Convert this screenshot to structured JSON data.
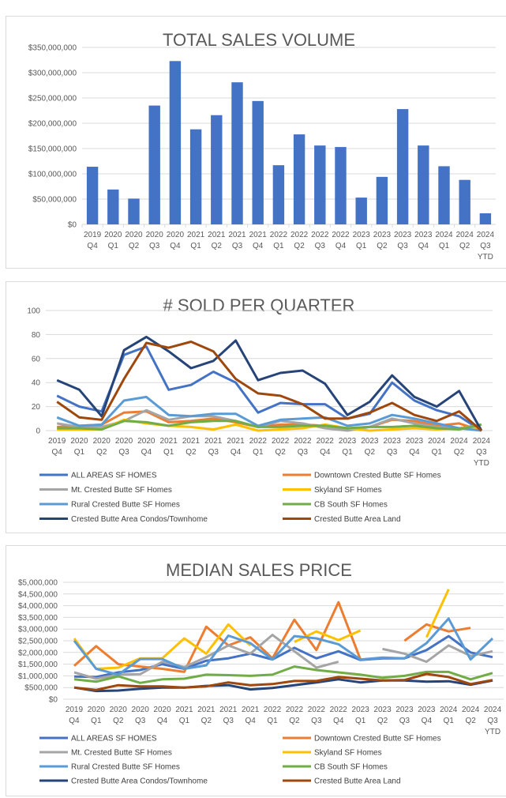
{
  "chart_data": [
    {
      "type": "bar",
      "title": "TOTAL SALES VOLUME",
      "xlabel": "",
      "ylabel": "",
      "categories": [
        "2019 Q4",
        "2020 Q1",
        "2020 Q2",
        "2020 Q3",
        "2020 Q4",
        "2021 Q1",
        "2021 Q2",
        "2021 Q3",
        "2021 Q4",
        "2022 Q1",
        "2022 Q2",
        "2022 Q3",
        "2022 Q4",
        "2023 Q1",
        "2023 Q2",
        "2023 Q3",
        "2023 Q4",
        "2024 Q1",
        "2024 Q2",
        "2024 Q3 YTD"
      ],
      "values": [
        114000000,
        69000000,
        51000000,
        235000000,
        323000000,
        188000000,
        216000000,
        281000000,
        244000000,
        117000000,
        178000000,
        156000000,
        153000000,
        53000000,
        94000000,
        228000000,
        156000000,
        115000000,
        88000000,
        22000000
      ],
      "ylim": [
        0,
        350000000
      ],
      "yticks": [
        "$0",
        "$50,000,000",
        "$100,000,000",
        "$150,000,000",
        "$200,000,000",
        "$250,000,000",
        "$300,000,000",
        "$350,000,000"
      ],
      "grid": true,
      "color": "#4472c4"
    },
    {
      "type": "line",
      "title": "# SOLD PER QUARTER",
      "xlabel": "",
      "ylabel": "",
      "categories": [
        "2019 Q4",
        "2020 Q1",
        "2020 Q2",
        "2020 Q3",
        "2020 Q4",
        "2021 Q1",
        "2021 Q2",
        "2021 Q3",
        "2021 Q4",
        "2022 Q1",
        "2022 Q2",
        "2022 Q3",
        "2022 Q4",
        "2023 Q1",
        "2023 Q2",
        "2023 Q3",
        "2023 Q4",
        "2024 Q1",
        "2024 Q2",
        "2024 Q3 YTD"
      ],
      "ylim": [
        0,
        100
      ],
      "yticks": [
        "0",
        "20",
        "40",
        "60",
        "80",
        "100"
      ],
      "grid": true,
      "legend": "bottom",
      "series": [
        {
          "name": "ALL AREAS SF HOMES",
          "color": "#4472c4",
          "values": [
            29,
            20,
            16,
            63,
            70,
            34,
            38,
            49,
            40,
            15,
            23,
            22,
            22,
            10,
            14,
            40,
            25,
            17,
            12,
            0
          ]
        },
        {
          "name": "Downtown Crested Butte SF Homes",
          "color": "#ed7d31",
          "values": [
            3,
            4,
            5,
            15,
            16,
            7,
            8,
            10,
            7,
            3,
            5,
            5,
            4,
            2,
            3,
            9,
            8,
            4,
            6,
            0
          ]
        },
        {
          "name": "Mt. Crested Butte SF Homes",
          "color": "#a5a5a5",
          "values": [
            6,
            3,
            3,
            8,
            17,
            9,
            12,
            12,
            8,
            3,
            8,
            6,
            2,
            0,
            3,
            10,
            6,
            3,
            2,
            5
          ]
        },
        {
          "name": "Skyland SF Homes",
          "color": "#ffc000",
          "values": [
            1,
            1,
            1,
            9,
            6,
            4,
            3,
            1,
            5,
            0,
            1,
            2,
            5,
            2,
            0,
            1,
            2,
            1,
            2,
            2
          ]
        },
        {
          "name": "Rural Crested Butte SF Homes",
          "color": "#5b9bd5",
          "values": [
            11,
            4,
            5,
            25,
            28,
            13,
            12,
            14,
            14,
            4,
            9,
            10,
            11,
            4,
            6,
            13,
            10,
            6,
            2,
            0
          ]
        },
        {
          "name": "CB South SF Homes",
          "color": "#70ad47",
          "values": [
            2,
            2,
            1,
            8,
            7,
            4,
            7,
            8,
            8,
            3,
            3,
            4,
            4,
            2,
            3,
            3,
            4,
            2,
            1,
            5
          ]
        },
        {
          "name": "Crested Butte Area Condos/Townhome",
          "color": "#264478",
          "values": [
            42,
            34,
            12,
            67,
            78,
            66,
            52,
            58,
            75,
            42,
            48,
            50,
            39,
            13,
            24,
            46,
            28,
            20,
            33,
            0
          ]
        },
        {
          "name": "Crested Butte Area Land",
          "color": "#9e480e",
          "values": [
            24,
            11,
            9,
            43,
            73,
            69,
            74,
            66,
            43,
            31,
            29,
            22,
            10,
            10,
            15,
            23,
            13,
            8,
            16,
            0
          ]
        }
      ]
    },
    {
      "type": "line",
      "title": "MEDIAN SALES PRICE",
      "xlabel": "",
      "ylabel": "",
      "categories": [
        "2019 Q4",
        "2020 Q1",
        "2020 Q2",
        "2020 Q3",
        "2020 Q4",
        "2021 Q1",
        "2021 Q2",
        "2021 Q3",
        "2021 Q4",
        "2022 Q1",
        "2022 Q2",
        "2022 Q3",
        "2022 Q4",
        "2023 Q1",
        "2023 Q2",
        "2023 Q3",
        "2023 Q4",
        "2024 Q1",
        "2024 Q2",
        "2024 Q3 YTD"
      ],
      "ylim": [
        0,
        5000000
      ],
      "yticks": [
        "$0",
        "$500,000",
        "$1,000,000",
        "$1,500,000",
        "$2,000,000",
        "$2,500,000",
        "$3,000,000",
        "$3,500,000",
        "$4,000,000",
        "$4,500,000",
        "$5,000,000"
      ],
      "grid": true,
      "legend": "bottom",
      "series": [
        {
          "name": "ALL AREAS SF HOMES",
          "color": "#4472c4",
          "values": [
            970000,
            950000,
            1150000,
            1250000,
            1500000,
            1300000,
            1650000,
            1750000,
            1950000,
            1700000,
            2200000,
            1750000,
            2050000,
            1680000,
            1750000,
            1750000,
            2100000,
            2700000,
            2000000,
            1800000
          ]
        },
        {
          "name": "Downtown Crested Butte SF Homes",
          "color": "#ed7d31",
          "values": [
            1430000,
            2270000,
            1500000,
            1400000,
            1300000,
            1170000,
            3100000,
            2300000,
            2650000,
            1750000,
            3400000,
            2100000,
            4150000,
            1700000,
            null,
            2500000,
            3200000,
            2900000,
            3050000,
            null
          ]
        },
        {
          "name": "Mt. Crested Butte SF Homes",
          "color": "#a5a5a5",
          "values": [
            1150000,
            880000,
            1050000,
            1070000,
            1600000,
            1380000,
            1800000,
            2300000,
            1950000,
            2750000,
            2050000,
            1350000,
            1600000,
            null,
            2150000,
            1950000,
            1600000,
            2300000,
            1850000,
            2050000
          ]
        },
        {
          "name": "Skyland SF Homes",
          "color": "#ffc000",
          "values": [
            2600000,
            1300000,
            1350000,
            1750000,
            1750000,
            2600000,
            1950000,
            3200000,
            2300000,
            null,
            2450000,
            2900000,
            2530000,
            2940000,
            null,
            null,
            2650000,
            4700000,
            null,
            null
          ]
        },
        {
          "name": "Rural Crested Butte SF Homes",
          "color": "#5b9bd5",
          "values": [
            2500000,
            1300000,
            1050000,
            1720000,
            1720000,
            1300000,
            1450000,
            2720000,
            2400000,
            1700000,
            2700000,
            2600000,
            2350000,
            1700000,
            1780000,
            1750000,
            2400000,
            3450000,
            1700000,
            2600000
          ]
        },
        {
          "name": "CB South SF Homes",
          "color": "#70ad47",
          "values": [
            850000,
            750000,
            980000,
            700000,
            850000,
            880000,
            1050000,
            1030000,
            1000000,
            1050000,
            1400000,
            1250000,
            1150000,
            1050000,
            920000,
            1000000,
            1170000,
            1170000,
            850000,
            1120000
          ]
        },
        {
          "name": "Crested Butte Area Condos/Townhome",
          "color": "#264478",
          "values": [
            500000,
            350000,
            370000,
            450000,
            500000,
            500000,
            570000,
            600000,
            420000,
            480000,
            600000,
            720000,
            850000,
            720000,
            800000,
            800000,
            750000,
            770000,
            620000,
            800000
          ]
        },
        {
          "name": "Crested Butte Area Land",
          "color": "#9e480e",
          "values": [
            500000,
            400000,
            600000,
            550000,
            550000,
            500000,
            550000,
            720000,
            600000,
            650000,
            780000,
            780000,
            950000,
            880000,
            800000,
            820000,
            1080000,
            950000,
            650000,
            820000
          ]
        }
      ]
    }
  ]
}
